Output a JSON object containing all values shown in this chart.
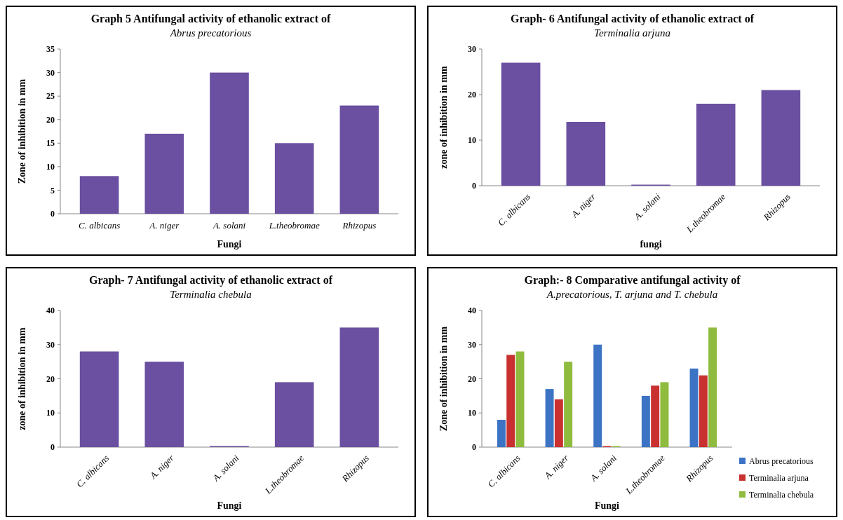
{
  "chart_data": [
    {
      "type": "bar",
      "title": "Graph  5 Antifungal  activity of ethanolic extract of",
      "subtitle": "Abrus precatorious",
      "xlabel": "Fungi",
      "ylabel": "Zone of inhibition in mm",
      "categories": [
        "C. albicans",
        "A. niger",
        "A. solani",
        "L.theobromae",
        "Rhizopus"
      ],
      "values": [
        8,
        17,
        30,
        15,
        23
      ],
      "color": "#6b4fa0",
      "ylim": [
        0,
        35
      ],
      "yticks": [
        0,
        5,
        10,
        15,
        20,
        25,
        30,
        35
      ]
    },
    {
      "type": "bar",
      "title": "Graph- 6  Antifungal  activity of ethanolic extract of",
      "subtitle": "Terminalia  arjuna",
      "xlabel": "fungi",
      "ylabel": "zone of inhibition in mm",
      "categories": [
        "C. albicans",
        "A. niger",
        "A. solani",
        "L.theobromae",
        "Rhizopus"
      ],
      "values": [
        27,
        14,
        0,
        18,
        21
      ],
      "color": "#6b4fa0",
      "ylim": [
        0,
        30
      ],
      "yticks": [
        0,
        10,
        20,
        30
      ]
    },
    {
      "type": "bar",
      "title": "Graph- 7 Antifungal  activity of ethanolic extract of",
      "subtitle": "Terminalia  chebula",
      "xlabel": "Fungi",
      "ylabel": "zone of inhibition in mm",
      "categories": [
        "C. albicans",
        "A. niger",
        "A. solani",
        "L.theobromae",
        "Rhizopus"
      ],
      "values": [
        28,
        25,
        0,
        19,
        35
      ],
      "color": "#6b4fa0",
      "ylim": [
        0,
        40
      ],
      "yticks": [
        0,
        10,
        20,
        30,
        40
      ]
    },
    {
      "type": "bar",
      "title": "Graph:- 8 Comparative antifungal activity of",
      "subtitle": "A.precatorious, T. arjuna and T. chebula",
      "xlabel": "Fungi",
      "ylabel": "Zone of inhibition in mm",
      "categories": [
        "C. albicans",
        "A. niger",
        "A. solani",
        "L.theobromae",
        "Rhizopus"
      ],
      "ylim": [
        0,
        40
      ],
      "yticks": [
        0,
        10,
        20,
        30,
        40
      ],
      "legend": "right",
      "series": [
        {
          "name": "Abrus precatorious",
          "color": "#3c73c4",
          "values": [
            8,
            17,
            30,
            15,
            23
          ]
        },
        {
          "name": "Terminalia arjuna",
          "color": "#c8312f",
          "values": [
            27,
            14,
            0,
            18,
            21
          ]
        },
        {
          "name": "Terminalia chebula",
          "color": "#8fbb3e",
          "values": [
            28,
            25,
            0,
            19,
            35
          ]
        }
      ]
    }
  ]
}
